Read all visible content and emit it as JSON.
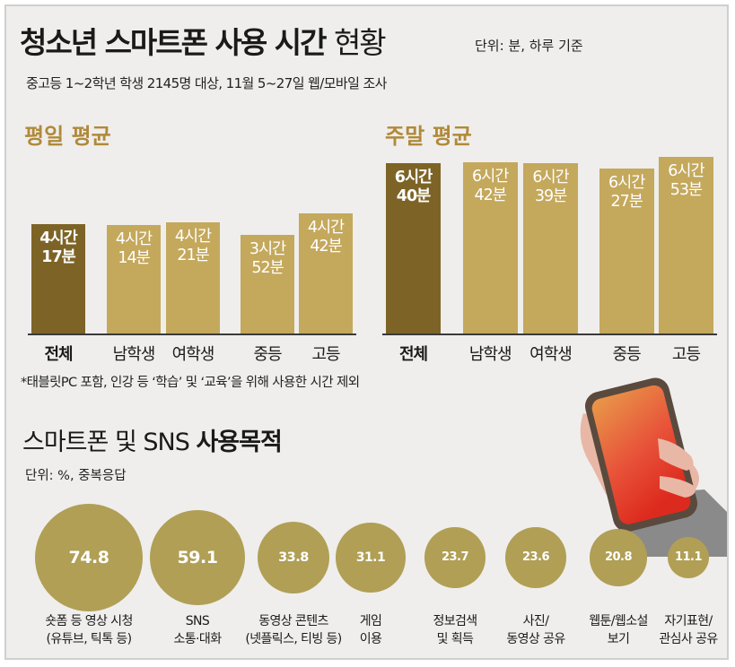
{
  "title": {
    "bold": "청소년 스마트폰 사용 시간",
    "light": "현황",
    "unit": "단위: 분, 하루 기준",
    "subtitle": "중고등 1~2학년 학생 2145명 대상, 11월 5~27일 웹/모바일 조사"
  },
  "colors": {
    "bar_total": "#7d6426",
    "bar_other": "#c4a85c",
    "section_title": "#b08a3a",
    "bubble": "#b09f55",
    "background": "#efeeec"
  },
  "note": "*태블릿PC 포함, 인강 등 ‘학습’ 및 ‘교육’을 위해 사용한 시간 제외",
  "purpose": {
    "title_light": "스마트폰 및 SNS",
    "title_bold": "사용목적",
    "unit": "단위: %, 중복응답"
  },
  "chart_data": [
    {
      "type": "bar",
      "title": "평일 평균",
      "categories": [
        "전체",
        "남학생",
        "여학생",
        "중등",
        "고등"
      ],
      "values": [
        257,
        254,
        261,
        232,
        282
      ],
      "value_labels": [
        "4시간\n17분",
        "4시간\n14분",
        "4시간\n21분",
        "3시간\n52분",
        "4시간\n42분"
      ],
      "unit": "분",
      "ylim": [
        0,
        420
      ]
    },
    {
      "type": "bar",
      "title": "주말 평균",
      "categories": [
        "전체",
        "남학생",
        "여학생",
        "중등",
        "고등"
      ],
      "values": [
        400,
        402,
        399,
        387,
        413
      ],
      "value_labels": [
        "6시간\n40분",
        "6시간\n42분",
        "6시간\n39분",
        "6시간\n27분",
        "6시간\n53분"
      ],
      "unit": "분",
      "ylim": [
        0,
        420
      ]
    },
    {
      "type": "bar",
      "title": "스마트폰 및 SNS 사용목적",
      "unit": "%",
      "categories": [
        "숏폼 등 영상 시청\n(유튜브, 틱톡 등)",
        "SNS\n소통·대화",
        "동영상 콘텐츠\n(넷플릭스, 티빙 등)",
        "게임\n이용",
        "정보검색\n및 획득",
        "사진/\n동영상 공유",
        "웹툰/웹소설\n보기",
        "자기표현/\n관심사 공유"
      ],
      "values": [
        74.8,
        59.1,
        33.8,
        31.1,
        23.7,
        23.6,
        20.8,
        11.1
      ],
      "value_labels": [
        "74.8",
        "59.1",
        "33.8",
        "31.1",
        "23.7",
        "23.6",
        "20.8",
        "11.1"
      ]
    }
  ]
}
